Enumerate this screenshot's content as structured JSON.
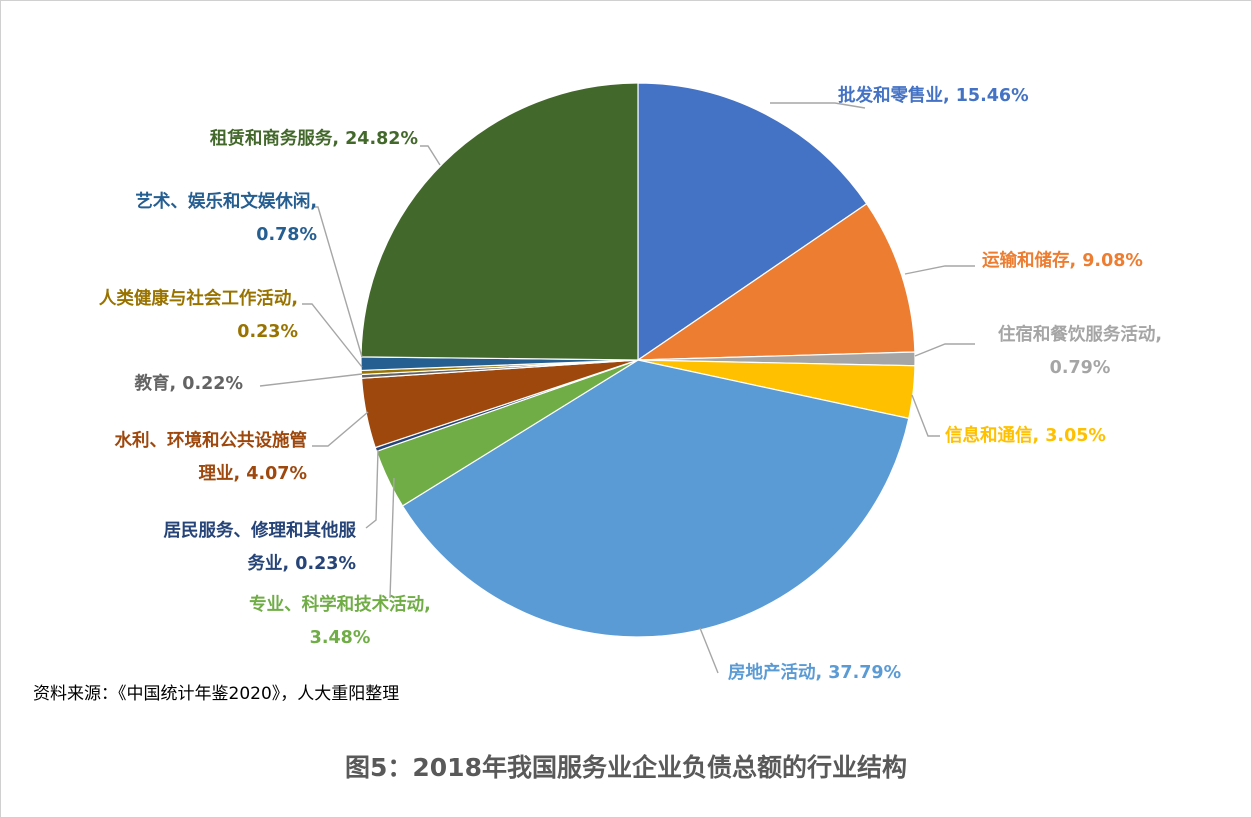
{
  "chart_data": {
    "type": "pie",
    "title": "图5：2018年我国服务业企业负债总额的行业结构",
    "source": "资料来源：《中国统计年鉴2020》，人大重阳整理",
    "legend": "none",
    "slices": [
      {
        "name": "批发和零售业",
        "value": 15.46,
        "label": [
          "批发和零售业, 15.46%"
        ],
        "color": "#4472C4"
      },
      {
        "name": "运输和储存",
        "value": 9.08,
        "label": [
          "运输和储存, 9.08%"
        ],
        "color": "#ED7D31"
      },
      {
        "name": "住宿和餐饮服务活动",
        "value": 0.79,
        "label": [
          "住宿和餐饮服务活动,",
          "0.79%"
        ],
        "color": "#A5A5A5"
      },
      {
        "name": "信息和通信",
        "value": 3.05,
        "label": [
          "信息和通信, 3.05%"
        ],
        "color": "#FFC000"
      },
      {
        "name": "房地产活动",
        "value": 37.79,
        "label": [
          "房地产活动, 37.79%"
        ],
        "color": "#5B9BD5"
      },
      {
        "name": "专业、科学和技术活动",
        "value": 3.48,
        "label": [
          "专业、科学和技术活动,",
          "3.48%"
        ],
        "color": "#70AD47"
      },
      {
        "name": "居民服务、修理和其他服务业",
        "value": 0.23,
        "label": [
          "居民服务、修理和其他服",
          "务业, 0.23%"
        ],
        "color": "#264478"
      },
      {
        "name": "水利、环境和公共设施管理业",
        "value": 4.07,
        "label": [
          "水利、环境和公共设施管",
          "理业, 4.07%"
        ],
        "color": "#9E480E"
      },
      {
        "name": "教育",
        "value": 0.22,
        "label": [
          "教育, 0.22%"
        ],
        "color": "#636363"
      },
      {
        "name": "人类健康与社会工作活动",
        "value": 0.23,
        "label": [
          "人类健康与社会工作活动,",
          "0.23%"
        ],
        "color": "#997300"
      },
      {
        "name": "艺术、娱乐和文娱休闲",
        "value": 0.78,
        "label": [
          "艺术、娱乐和文娱休闲,",
          "0.78%"
        ],
        "color": "#255E91"
      },
      {
        "name": "租赁和商务服务",
        "value": 24.82,
        "label": [
          "租赁和商务服务, 24.82%"
        ],
        "color": "#43682B"
      }
    ]
  }
}
